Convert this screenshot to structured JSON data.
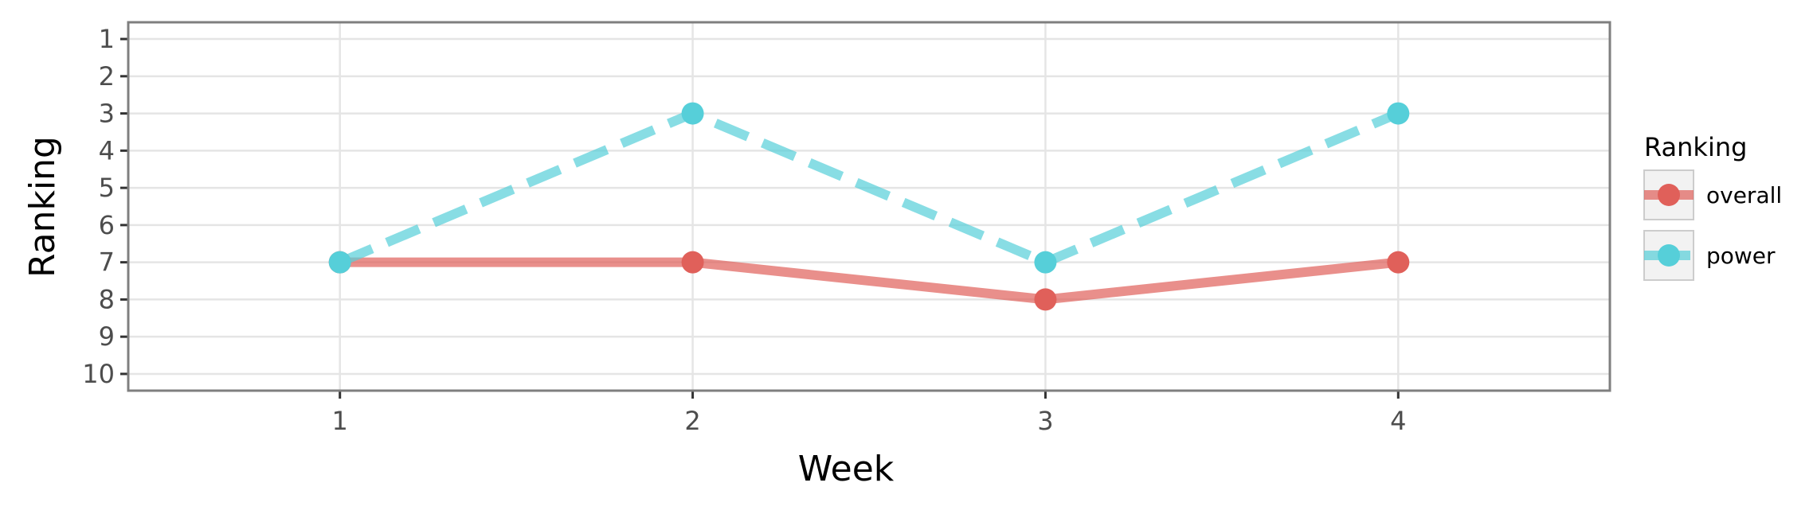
{
  "chart_data": {
    "type": "line",
    "x": [
      1,
      2,
      3,
      4
    ],
    "xlabel": "Week",
    "ylabel": "Ranking",
    "xlim": [
      0.4,
      4.6
    ],
    "ylim": [
      10.45,
      0.55
    ],
    "y_reversed": true,
    "xticks": [
      1,
      2,
      3,
      4
    ],
    "yticks": [
      1,
      2,
      3,
      4,
      5,
      6,
      7,
      8,
      9,
      10
    ],
    "grid": true,
    "legend": {
      "title": "Ranking",
      "position": "right"
    },
    "series": [
      {
        "name": "overall",
        "values": [
          7,
          7,
          8,
          7
        ],
        "color": "#e0605a",
        "linestyle": "solid"
      },
      {
        "name": "power",
        "values": [
          7,
          3,
          7,
          3
        ],
        "color": "#56cfd9",
        "linestyle": "dashed"
      }
    ]
  }
}
